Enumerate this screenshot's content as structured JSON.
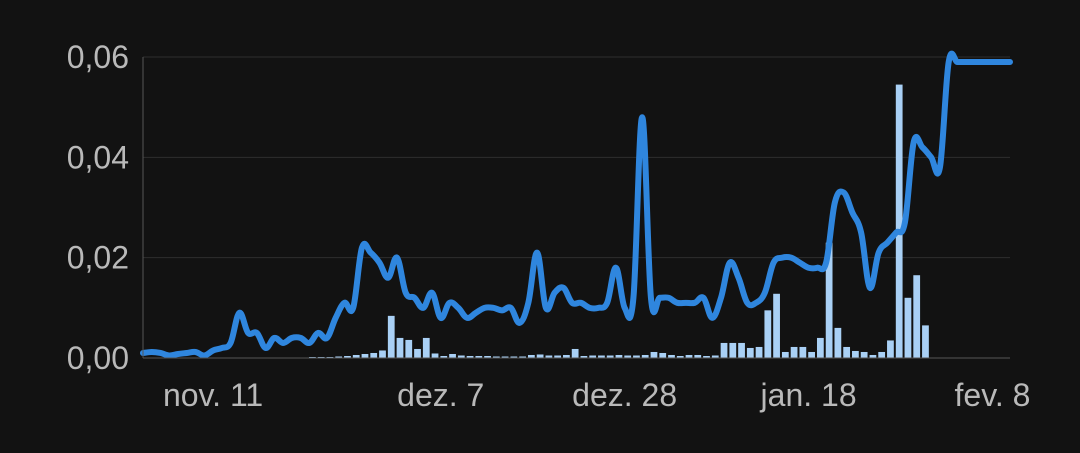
{
  "colors": {
    "background": "#121212",
    "grid": "#2e2e2e",
    "axis": "#555555",
    "line": "#2f86de",
    "bars": "#a9d0f5",
    "labels": "#b9b9b9"
  },
  "chart_data": {
    "type": "line",
    "title": "",
    "xlabel": "",
    "ylabel": "",
    "grid": true,
    "legend": "none",
    "ylim": [
      0,
      0.06
    ],
    "y_ticks": [
      {
        "value": 0.0,
        "label": "0,00"
      },
      {
        "value": 0.02,
        "label": "0,02"
      },
      {
        "value": 0.04,
        "label": "0,04"
      },
      {
        "value": 0.06,
        "label": "0,06"
      }
    ],
    "x_ticks": [
      {
        "value": 8,
        "label": "nov. 11"
      },
      {
        "value": 34,
        "label": "dez. 7"
      },
      {
        "value": 55,
        "label": "dez. 28"
      },
      {
        "value": 76,
        "label": "jan. 18"
      },
      {
        "value": 97,
        "label": "fev. 8"
      }
    ],
    "xlim": [
      0,
      99
    ],
    "line_series": {
      "x": [
        0,
        1,
        2,
        3,
        4,
        5,
        6,
        7,
        8,
        9,
        10,
        11,
        12,
        13,
        14,
        15,
        16,
        17,
        18,
        19,
        20,
        21,
        22,
        23,
        24,
        25,
        26,
        27,
        28,
        29,
        30,
        31,
        32,
        33,
        34,
        35,
        36,
        37,
        38,
        39,
        40,
        41,
        42,
        43,
        44,
        45,
        46,
        47,
        48,
        49,
        50,
        51,
        52,
        53,
        54,
        55,
        56,
        57,
        58,
        59,
        60,
        61,
        62,
        63,
        64,
        65,
        66,
        67,
        68,
        69,
        70,
        71,
        72,
        73,
        74,
        75,
        76,
        77,
        78,
        79,
        80,
        81,
        82,
        83,
        84,
        85,
        86,
        87,
        88,
        89,
        90,
        91,
        92,
        93,
        94,
        95,
        96,
        97,
        98,
        99
      ],
      "y": [
        0.001,
        0.0012,
        0.001,
        0.0005,
        0.0008,
        0.001,
        0.0012,
        0.0005,
        0.0015,
        0.002,
        0.003,
        0.009,
        0.005,
        0.005,
        0.002,
        0.004,
        0.003,
        0.004,
        0.004,
        0.003,
        0.005,
        0.004,
        0.008,
        0.011,
        0.01,
        0.022,
        0.021,
        0.019,
        0.016,
        0.02,
        0.013,
        0.012,
        0.01,
        0.013,
        0.008,
        0.011,
        0.01,
        0.008,
        0.009,
        0.01,
        0.01,
        0.0095,
        0.01,
        0.007,
        0.011,
        0.021,
        0.01,
        0.013,
        0.014,
        0.011,
        0.011,
        0.01,
        0.01,
        0.011,
        0.018,
        0.01,
        0.012,
        0.048,
        0.012,
        0.012,
        0.012,
        0.011,
        0.011,
        0.011,
        0.012,
        0.008,
        0.012,
        0.019,
        0.016,
        0.011,
        0.011,
        0.013,
        0.019,
        0.02,
        0.02,
        0.019,
        0.018,
        0.018,
        0.019,
        0.031,
        0.033,
        0.029,
        0.025,
        0.014,
        0.021,
        0.023,
        0.025,
        0.027,
        0.043,
        0.042,
        0.04,
        0.038,
        0.059,
        0.059,
        0.059,
        0.059,
        0.059,
        0.059,
        0.059,
        0.059
      ]
    },
    "bar_series": {
      "x": [
        0,
        1,
        2,
        3,
        4,
        5,
        6,
        7,
        8,
        9,
        10,
        11,
        12,
        13,
        14,
        15,
        16,
        17,
        18,
        19,
        20,
        21,
        22,
        23,
        24,
        25,
        26,
        27,
        28,
        29,
        30,
        31,
        32,
        33,
        34,
        35,
        36,
        37,
        38,
        39,
        40,
        41,
        42,
        43,
        44,
        45,
        46,
        47,
        48,
        49,
        50,
        51,
        52,
        53,
        54,
        55,
        56,
        57,
        58,
        59,
        60,
        61,
        62,
        63,
        64,
        65,
        66,
        67,
        68,
        69,
        70,
        71,
        72,
        73,
        74,
        75,
        76,
        77,
        78,
        79,
        80,
        81,
        82,
        83,
        84,
        85,
        86,
        87,
        88,
        89,
        90,
        91,
        92,
        93,
        94,
        95,
        96,
        97,
        98,
        99
      ],
      "values": [
        0,
        0,
        0,
        0,
        0,
        0,
        0,
        0,
        0,
        0,
        0,
        0,
        0,
        0,
        0,
        0,
        0,
        0,
        0,
        0.0002,
        0.0002,
        0.0002,
        0.0003,
        0.0004,
        0.0006,
        0.0008,
        0.001,
        0.0015,
        0.0084,
        0.004,
        0.0036,
        0.0018,
        0.004,
        0.0009,
        0.0004,
        0.0008,
        0.0005,
        0.0004,
        0.0004,
        0.0004,
        0.0003,
        0.0003,
        0.0003,
        0.0003,
        0.0006,
        0.0007,
        0.0005,
        0.0005,
        0.0006,
        0.0018,
        0.0004,
        0.0005,
        0.0005,
        0.0005,
        0.0006,
        0.0005,
        0.0005,
        0.0006,
        0.0012,
        0.001,
        0.0006,
        0.0004,
        0.0006,
        0.0006,
        0.0004,
        0.0005,
        0.003,
        0.003,
        0.003,
        0.002,
        0.0022,
        0.0095,
        0.0128,
        0.0012,
        0.0022,
        0.0022,
        0.0012,
        0.004,
        0.023,
        0.006,
        0.0022,
        0.0014,
        0.0012,
        0.0006,
        0.0012,
        0.0035,
        0.0545,
        0.012,
        0.0165,
        0.0065,
        0,
        0,
        0,
        0,
        0,
        0,
        0,
        0,
        0,
        0
      ]
    }
  }
}
